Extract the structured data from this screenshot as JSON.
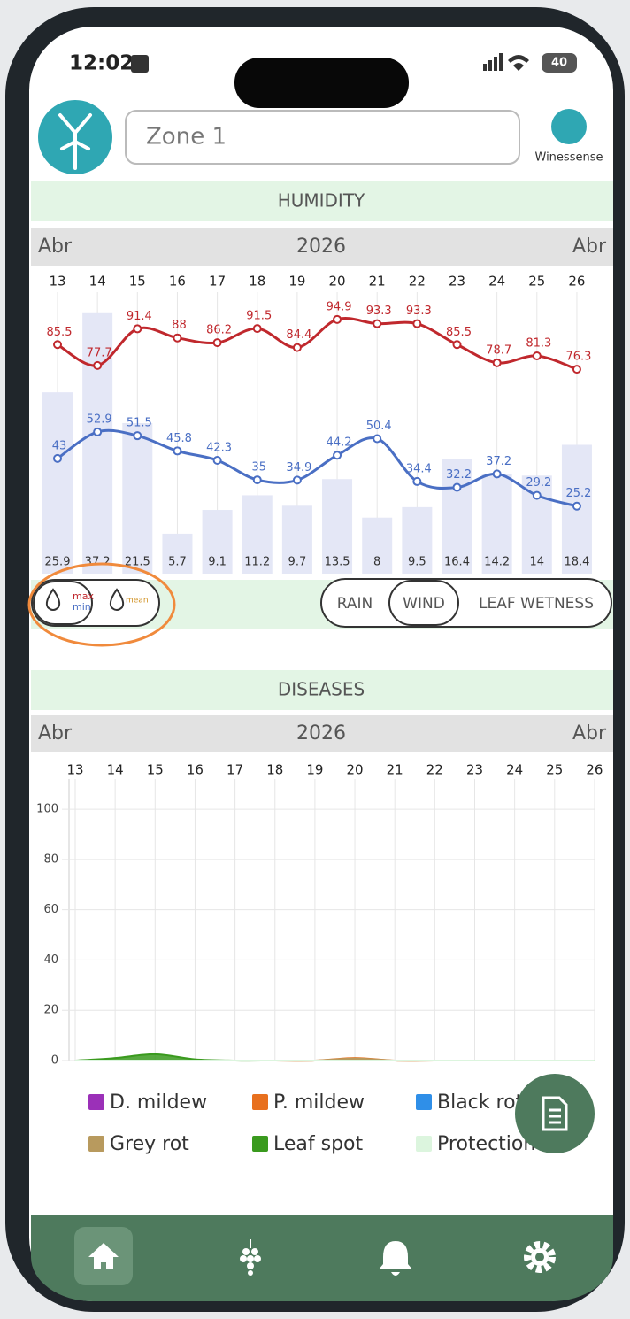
{
  "status_bar": {
    "time": "12:02",
    "battery": "40"
  },
  "header": {
    "zone": "Zone 1",
    "brand": "Winessense"
  },
  "humidity": {
    "title": "HUMIDITY",
    "period": {
      "start": "Abr",
      "year": "2026",
      "end": "Abr"
    },
    "toggles": [
      "max",
      "min",
      "mean"
    ],
    "buttons": [
      "RAIN",
      "WIND",
      "LEAF WETNESS"
    ],
    "selected_button": 1,
    "chart_data": {
      "type": "line",
      "categories": [
        13,
        14,
        15,
        16,
        17,
        18,
        19,
        20,
        21,
        22,
        23,
        24,
        25,
        26
      ],
      "series": [
        {
          "color": "#c0282d",
          "values": [
            85.5,
            77.7,
            91.4,
            88,
            86.2,
            91.5,
            84.4,
            94.9,
            93.3,
            93.3,
            85.5,
            78.7,
            81.3,
            76.3
          ]
        },
        {
          "color": "#4a6fc4",
          "values": [
            43,
            52.9,
            51.5,
            45.8,
            42.3,
            35,
            34.9,
            44.2,
            50.4,
            34.4,
            32.2,
            37.2,
            29.2,
            25.2
          ]
        },
        {
          "type": "bar",
          "color": "#e4e7f6",
          "axis": "y2",
          "values": [
            25.9,
            37.2,
            21.5,
            5.7,
            9.1,
            11.2,
            9.7,
            13.5,
            8,
            9.5,
            16.4,
            14.2,
            14,
            18.4
          ]
        }
      ],
      "ylim": [
        0,
        115
      ],
      "y2lim": [
        0,
        44
      ]
    }
  },
  "diseases": {
    "title": "DISEASES",
    "period": {
      "start": "Abr",
      "year": "2026",
      "end": "Abr"
    },
    "chart_data": {
      "type": "area",
      "categories": [
        13,
        14,
        15,
        16,
        17,
        18,
        19,
        20,
        21,
        22,
        23,
        24,
        25,
        26
      ],
      "series": [
        {
          "name": "D. mildew",
          "color": "#9b30b8",
          "values": [
            0,
            0,
            0,
            0,
            0,
            0,
            0,
            0,
            0,
            0,
            0,
            0,
            0,
            0
          ]
        },
        {
          "name": "P. mildew",
          "color": "#e8701e",
          "values": [
            0,
            0,
            0,
            0,
            0,
            0,
            0,
            1,
            0,
            0,
            0,
            0,
            0,
            0
          ]
        },
        {
          "name": "Black rot",
          "color": "#2f8fe8",
          "values": [
            0,
            0,
            0,
            0,
            0,
            0,
            0,
            0,
            0,
            0,
            0,
            0,
            0,
            0
          ]
        },
        {
          "name": "Grey rot",
          "color": "#b89a5e",
          "values": [
            0,
            0,
            0,
            0,
            0,
            0,
            0,
            0.8,
            0,
            0,
            0,
            0,
            0,
            0
          ]
        },
        {
          "name": "Leaf spot",
          "color": "#3a9a1e",
          "values": [
            0,
            1,
            2.5,
            0.5,
            0,
            0,
            0,
            0,
            0,
            0,
            0,
            0,
            0,
            0
          ]
        },
        {
          "name": "Protection",
          "color": "#dcf5de",
          "values": [
            0,
            0,
            0,
            0,
            0,
            0,
            0,
            0,
            0,
            0,
            0,
            0,
            0,
            0
          ]
        }
      ],
      "ylim": [
        0,
        112
      ],
      "yticks": [
        0,
        20,
        40,
        60,
        80,
        100
      ],
      "grid": true
    }
  }
}
